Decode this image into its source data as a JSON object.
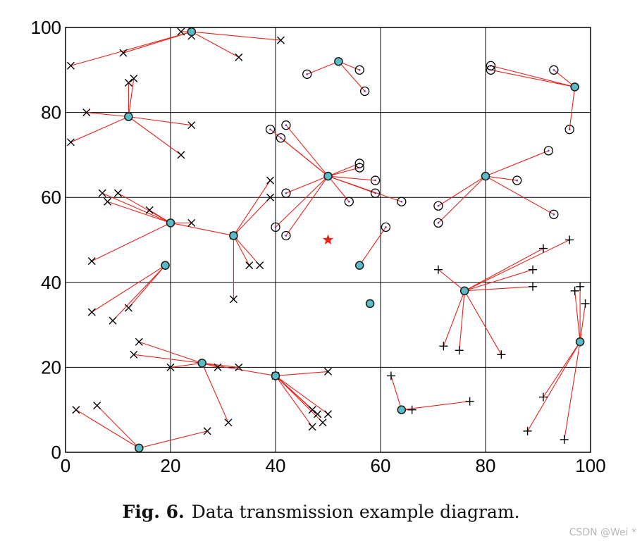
{
  "caption": {
    "figure_number": "Fig. 6.",
    "text": "Data transmission example diagram."
  },
  "watermark": "CSDN @Wei *",
  "chart_data": {
    "type": "scatter",
    "title": "",
    "xlabel": "",
    "ylabel": "",
    "xlim": [
      0,
      100
    ],
    "ylim": [
      0,
      100
    ],
    "xticks": [
      0,
      20,
      40,
      60,
      80,
      100
    ],
    "yticks": [
      0,
      20,
      40,
      60,
      80,
      100
    ],
    "grid": true,
    "legend": "none",
    "colors": {
      "link": "#e8231c",
      "head": "#5bbcc8",
      "base_station": "#e8231c",
      "marker": "#000000"
    },
    "base_station": {
      "x": 50,
      "y": 50,
      "marker": "star"
    },
    "isolated_heads": [
      {
        "x": 58,
        "y": 35
      }
    ],
    "clusters": [
      {
        "marker": "x",
        "head": [
          24,
          99
        ],
        "members": [
          [
            1,
            91
          ],
          [
            11,
            94
          ],
          [
            22,
            99
          ],
          [
            24,
            98
          ],
          [
            33,
            93
          ],
          [
            41,
            97
          ]
        ]
      },
      {
        "marker": "x",
        "head": [
          12,
          79
        ],
        "members": [
          [
            4,
            80
          ],
          [
            1,
            73
          ],
          [
            12,
            87
          ],
          [
            13,
            88
          ],
          [
            24,
            77
          ],
          [
            22,
            70
          ]
        ]
      },
      {
        "marker": "x",
        "head": [
          20,
          54
        ],
        "members": [
          [
            7,
            61
          ],
          [
            8,
            59
          ],
          [
            10,
            61
          ],
          [
            16,
            57
          ],
          [
            24,
            54
          ],
          [
            32,
            51
          ],
          [
            5,
            45
          ]
        ]
      },
      {
        "marker": "x",
        "head": [
          32,
          51
        ],
        "members": [
          [
            39,
            64
          ],
          [
            39,
            60
          ],
          [
            35,
            44
          ],
          [
            37,
            44
          ],
          [
            32,
            36
          ]
        ]
      },
      {
        "marker": "x",
        "head": [
          19,
          44
        ],
        "members": [
          [
            12,
            34
          ],
          [
            5,
            33
          ],
          [
            9,
            31
          ]
        ]
      },
      {
        "marker": "x",
        "head": [
          26,
          21
        ],
        "members": [
          [
            14,
            26
          ],
          [
            13,
            23
          ],
          [
            20,
            20
          ],
          [
            29,
            20
          ],
          [
            33,
            20
          ],
          [
            31,
            7
          ],
          [
            40,
            18
          ]
        ]
      },
      {
        "marker": "x",
        "head": [
          40,
          18
        ],
        "members": [
          [
            50,
            19
          ],
          [
            47,
            10
          ],
          [
            48,
            9
          ],
          [
            50,
            9
          ],
          [
            47,
            6
          ],
          [
            49,
            7
          ]
        ]
      },
      {
        "marker": "x",
        "head": [
          14,
          1
        ],
        "members": [
          [
            2,
            10
          ],
          [
            6,
            11
          ],
          [
            27,
            5
          ]
        ]
      },
      {
        "marker": "o",
        "head": [
          52,
          92
        ],
        "members": [
          [
            46,
            89
          ],
          [
            56,
            90
          ],
          [
            57,
            85
          ]
        ]
      },
      {
        "marker": "o",
        "head": [
          50,
          65
        ],
        "members": [
          [
            39,
            76
          ],
          [
            41,
            74
          ],
          [
            42,
            77
          ],
          [
            42,
            61
          ],
          [
            40,
            53
          ],
          [
            42,
            51
          ],
          [
            56,
            68
          ],
          [
            56,
            67
          ],
          [
            59,
            64
          ],
          [
            59,
            61
          ],
          [
            64,
            59
          ],
          [
            54,
            59
          ]
        ]
      },
      {
        "marker": "o",
        "head": [
          56,
          44
        ],
        "members": [
          [
            61,
            53
          ]
        ]
      },
      {
        "marker": "o",
        "head": [
          97,
          86
        ],
        "members": [
          [
            81,
            91
          ],
          [
            81,
            90
          ],
          [
            93,
            90
          ],
          [
            96,
            76
          ]
        ]
      },
      {
        "marker": "o",
        "head": [
          80,
          65
        ],
        "members": [
          [
            92,
            71
          ],
          [
            86,
            64
          ],
          [
            93,
            56
          ],
          [
            71,
            58
          ],
          [
            71,
            54
          ]
        ]
      },
      {
        "marker": "plus",
        "head": [
          76,
          38
        ],
        "members": [
          [
            71,
            43
          ],
          [
            89,
            43
          ],
          [
            91,
            48
          ],
          [
            96,
            50
          ],
          [
            89,
            39
          ],
          [
            72,
            25
          ],
          [
            75,
            24
          ],
          [
            83,
            23
          ]
        ]
      },
      {
        "marker": "plus",
        "head": [
          98,
          26
        ],
        "members": [
          [
            97,
            38
          ],
          [
            98,
            39
          ],
          [
            99,
            35
          ],
          [
            91,
            13
          ],
          [
            88,
            5
          ],
          [
            95,
            3
          ]
        ]
      },
      {
        "marker": "plus",
        "head": [
          64,
          10
        ],
        "members": [
          [
            62,
            18
          ],
          [
            66,
            10
          ],
          [
            77,
            12
          ]
        ]
      }
    ]
  }
}
